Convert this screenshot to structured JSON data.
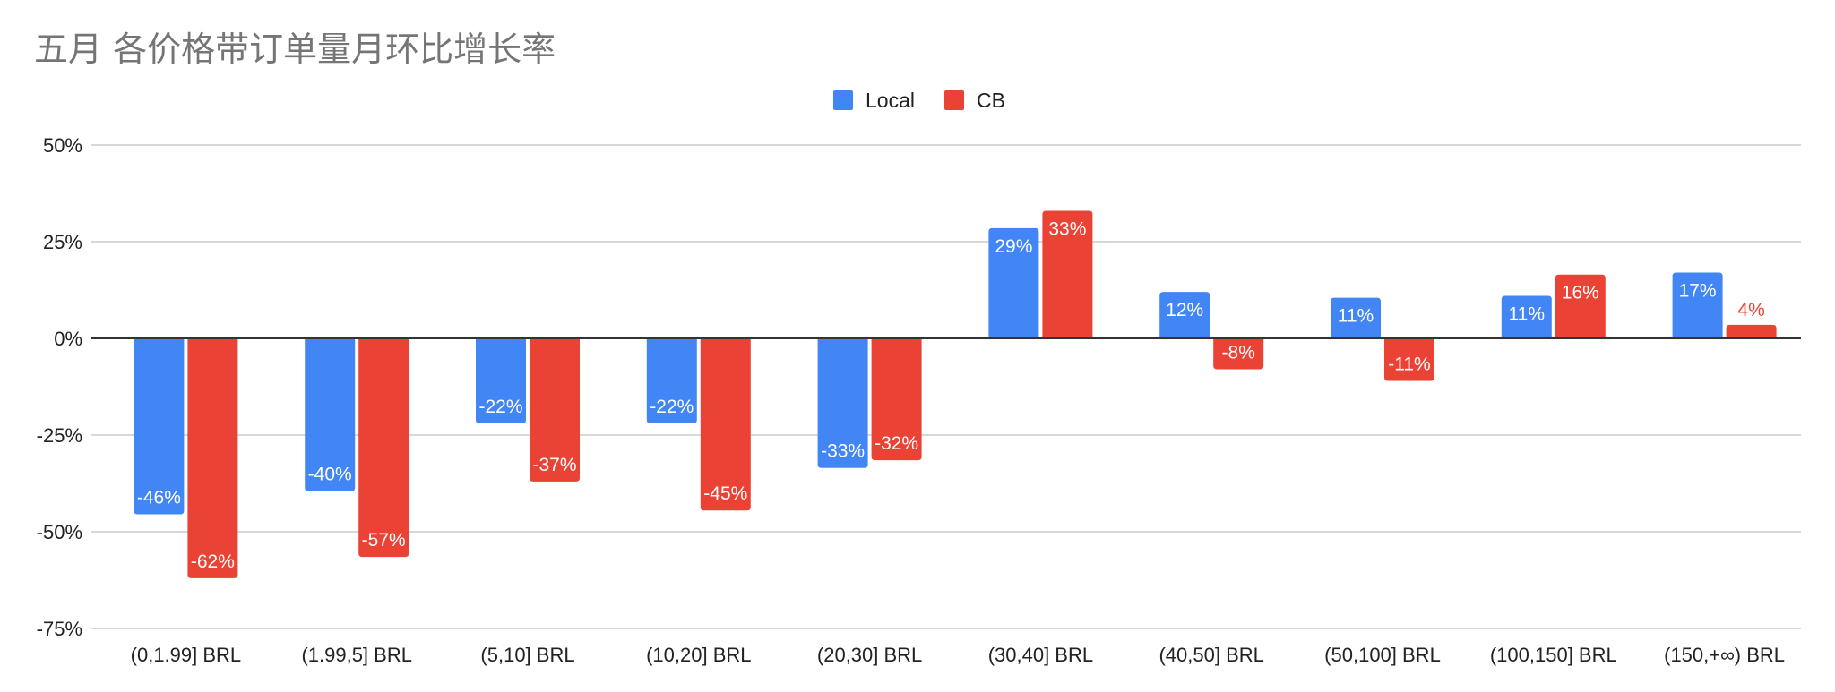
{
  "chart_data": {
    "type": "bar",
    "title": "五月 各价格带订单量月环比增长率",
    "xlabel": "",
    "ylabel": "",
    "ylim": [
      -0.75,
      0.5
    ],
    "yticks": [
      0.5,
      0.25,
      0,
      -0.25,
      -0.5,
      -0.75
    ],
    "ytick_labels": [
      "50%",
      "25%",
      "0%",
      "-25%",
      "-50%",
      "-75%"
    ],
    "grid": true,
    "legend_position": "top-center",
    "categories": [
      "(0,1.99] BRL",
      "(1.99,5] BRL",
      "(5,10] BRL",
      "(10,20] BRL",
      "(20,30] BRL",
      "(30,40] BRL",
      "(40,50] BRL",
      "(50,100] BRL",
      "(100,150] BRL",
      "(150,+∞) BRL"
    ],
    "series": [
      {
        "name": "Local",
        "color": "#4285f4",
        "values": [
          -0.455,
          -0.395,
          -0.22,
          -0.22,
          -0.335,
          0.285,
          0.12,
          0.105,
          0.11,
          0.17
        ],
        "labels": [
          "-46%",
          "-40%",
          "-22%",
          "-22%",
          "-33%",
          "29%",
          "12%",
          "11%",
          "11%",
          "17%"
        ]
      },
      {
        "name": "CB",
        "color": "#ea4335",
        "values": [
          -0.62,
          -0.565,
          -0.37,
          -0.445,
          -0.315,
          0.33,
          -0.08,
          -0.11,
          0.165,
          0.035
        ],
        "labels": [
          "-62%",
          "-57%",
          "-37%",
          "-45%",
          "-32%",
          "33%",
          "-8%",
          "-11%",
          "16%",
          "4%"
        ]
      }
    ]
  }
}
